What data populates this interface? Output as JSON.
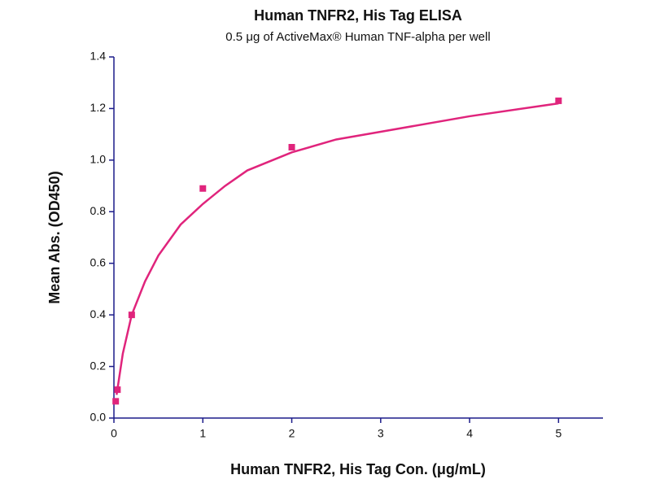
{
  "chart_data": {
    "type": "scatter",
    "title": "Human TNFR2, His Tag ELISA",
    "subtitle": "0.5 μg of ActiveMax® Human TNF-alpha per well",
    "x_label": "Human TNFR2, His Tag Con. (μg/mL)",
    "y_label": "Mean Abs. (OD450)",
    "xlim": [
      0,
      5.5
    ],
    "ylim": [
      0,
      1.4
    ],
    "xticks": [
      0,
      1,
      2,
      3,
      4,
      5
    ],
    "yticks": [
      {
        "value": 0,
        "label": "0.0"
      },
      {
        "value": 0.2,
        "label": "0.2"
      },
      {
        "value": 0.4,
        "label": "0.4"
      },
      {
        "value": 0.6,
        "label": "0.6"
      },
      {
        "value": 0.8,
        "label": "0.8"
      },
      {
        "value": 1.0,
        "label": "1.0"
      },
      {
        "value": 1.2,
        "label": "1.2"
      },
      {
        "value": 1.4,
        "label": "1.4"
      }
    ],
    "axis_color": "#1c1c8a",
    "series": [
      {
        "type": "scatter",
        "color": "#e0247c",
        "x": [
          0.02,
          0.04,
          0.2,
          1,
          2,
          5
        ],
        "values": [
          0.065,
          0.11,
          0.4,
          0.89,
          1.05,
          1.23
        ]
      },
      {
        "type": "line",
        "color": "#e0247c",
        "x": [
          0.03,
          0.1,
          0.2,
          0.35,
          0.5,
          0.75,
          1,
          1.25,
          1.5,
          2,
          2.5,
          3,
          4,
          5
        ],
        "values": [
          0.09,
          0.25,
          0.4,
          0.53,
          0.63,
          0.75,
          0.83,
          0.9,
          0.96,
          1.03,
          1.08,
          1.11,
          1.17,
          1.22
        ]
      }
    ]
  }
}
